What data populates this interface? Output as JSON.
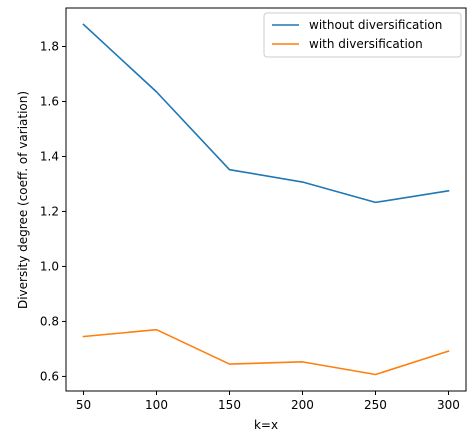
{
  "chart_data": {
    "type": "line",
    "x": [
      50,
      100,
      150,
      200,
      250,
      300
    ],
    "series": [
      {
        "name": "without diversification",
        "color": "#1f77b4",
        "values": [
          1.88,
          1.635,
          1.352,
          1.307,
          1.233,
          1.275
        ]
      },
      {
        "name": "with diversification",
        "color": "#ff7f0e",
        "values": [
          0.745,
          0.77,
          0.645,
          0.653,
          0.607,
          0.692
        ]
      }
    ],
    "xlabel": "k=x",
    "ylabel": "Diversity degree (coeff. of variation)",
    "xlim": [
      38,
      312
    ],
    "ylim": [
      0.547,
      1.94
    ],
    "xticks": [
      50,
      100,
      150,
      200,
      250,
      300
    ],
    "yticks": [
      0.6,
      0.8,
      1.0,
      1.2,
      1.4,
      1.6,
      1.8
    ],
    "ytick_labels": [
      "0.6",
      "0.8",
      "1.0",
      "1.2",
      "1.4",
      "1.6",
      "1.8"
    ],
    "grid": false,
    "legend_position": "top-right"
  }
}
